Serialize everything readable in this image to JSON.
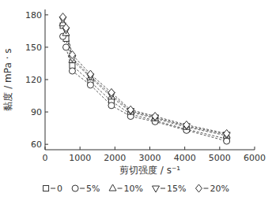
{
  "chart_data": {
    "type": "line",
    "x_label": "剪切强度 / s⁻¹",
    "y_label": "黏度 / mPa · s",
    "x": [
      510,
      600,
      780,
      1300,
      1900,
      2450,
      3150,
      4050,
      5200
    ],
    "series": [
      {
        "name": "0",
        "color": "#333333",
        "marker": "square",
        "line_style": "dashed",
        "values": [
          170,
          158,
          133,
          118,
          100,
          88,
          82,
          74,
          65
        ]
      },
      {
        "name": "5%",
        "color": "#333333",
        "marker": "circle",
        "line_style": "dashed",
        "values": [
          160,
          150,
          128,
          115,
          96,
          86,
          81,
          73,
          63
        ]
      },
      {
        "name": "10%",
        "color": "#333333",
        "marker": "triangle",
        "line_style": "dashed",
        "values": [
          172,
          163,
          138,
          122,
          104,
          90,
          84,
          76,
          68
        ]
      },
      {
        "name": "15%",
        "color": "#333333",
        "marker": "triangle_down",
        "line_style": "dashed",
        "values": [
          176,
          166,
          140,
          123,
          106,
          91,
          85,
          77,
          69
        ]
      },
      {
        "name": "20%",
        "color": "#333333",
        "marker": "diamond",
        "line_style": "dashed",
        "values": [
          178,
          168,
          143,
          125,
          108,
          92,
          86,
          78,
          70
        ]
      }
    ],
    "xlim": [
      0,
      6000
    ],
    "xticks": [
      0,
      1000,
      2000,
      3000,
      4000,
      5000,
      6000
    ],
    "ylim": [
      55,
      185
    ],
    "yticks": [
      60,
      90,
      120,
      150,
      180
    ],
    "legend": "bottom",
    "grid": false
  }
}
